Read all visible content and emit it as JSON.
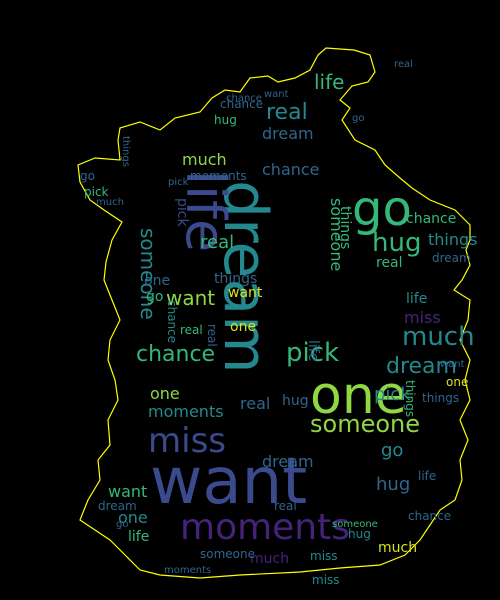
{
  "wordcloud": {
    "outline_color": "#ffff00",
    "background_color": "#000000",
    "palette": {
      "purple": "#46237a",
      "indigo": "#3b4a8c",
      "blue": "#30658d",
      "teal": "#23898e",
      "green": "#35b779",
      "lime": "#8fd744",
      "yellow": "#d7e219"
    },
    "words": [
      {
        "text": "want"
      },
      {
        "text": "dream"
      },
      {
        "text": "life"
      },
      {
        "text": "one"
      },
      {
        "text": "go"
      },
      {
        "text": "moments"
      },
      {
        "text": "miss"
      },
      {
        "text": "someone"
      },
      {
        "text": "pick"
      },
      {
        "text": "much"
      },
      {
        "text": "hug"
      },
      {
        "text": "chance"
      },
      {
        "text": "real"
      },
      {
        "text": "things"
      }
    ]
  }
}
